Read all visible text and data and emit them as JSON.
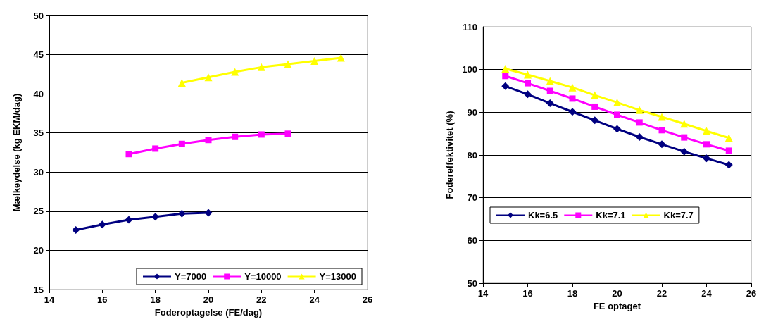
{
  "chart_data": [
    {
      "type": "line",
      "xlabel": "Foderoptagelse (FE/dag)",
      "ylabel": "Mælkeydelse (kg EKM/dag)",
      "xlim": [
        14,
        26
      ],
      "xticks": [
        14,
        16,
        18,
        20,
        22,
        24,
        26
      ],
      "ylim": [
        15,
        50
      ],
      "yticks": [
        15,
        20,
        25,
        30,
        35,
        40,
        45,
        50
      ],
      "grid": "y",
      "legend": "bottom right",
      "series": [
        {
          "name": "Y=7000",
          "color": "#000080",
          "marker": "diamond",
          "x": [
            15,
            16,
            17,
            18,
            19,
            20
          ],
          "values": [
            22.6,
            23.3,
            23.9,
            24.3,
            24.7,
            24.8
          ]
        },
        {
          "name": "Y=10000",
          "color": "#ff00ff",
          "marker": "square",
          "x": [
            17,
            18,
            19,
            20,
            21,
            22,
            23
          ],
          "values": [
            32.3,
            33.0,
            33.6,
            34.1,
            34.5,
            34.8,
            34.9
          ]
        },
        {
          "name": "Y=13000",
          "color": "#ffff00",
          "marker": "triangle",
          "x": [
            19,
            20,
            21,
            22,
            23,
            24,
            25
          ],
          "values": [
            41.4,
            42.1,
            42.8,
            43.4,
            43.8,
            44.2,
            44.6
          ]
        }
      ]
    },
    {
      "type": "line",
      "xlabel": "FE optaget",
      "ylabel": "Fodereffektivitet (%)",
      "xlim": [
        14,
        26
      ],
      "xticks": [
        14,
        16,
        18,
        20,
        22,
        24,
        26
      ],
      "ylim": [
        50,
        110
      ],
      "yticks": [
        50,
        60,
        70,
        80,
        90,
        100,
        110
      ],
      "grid": "y",
      "legend": "bottom left",
      "series": [
        {
          "name": "Kk=6.5",
          "color": "#000080",
          "marker": "diamond",
          "x": [
            15,
            16,
            17,
            18,
            19,
            20,
            21,
            22,
            23,
            24,
            25
          ],
          "values": [
            96.1,
            94.2,
            92.1,
            90.1,
            88.1,
            86.1,
            84.2,
            82.5,
            80.8,
            79.2,
            77.7
          ]
        },
        {
          "name": "Kk=7.1",
          "color": "#ff00ff",
          "marker": "square",
          "x": [
            15,
            16,
            17,
            18,
            19,
            20,
            21,
            22,
            23,
            24,
            25
          ],
          "values": [
            98.5,
            96.8,
            95.0,
            93.2,
            91.3,
            89.4,
            87.6,
            85.8,
            84.1,
            82.5,
            81.0
          ]
        },
        {
          "name": "Kk=7.7",
          "color": "#ffff00",
          "marker": "triangle",
          "x": [
            15,
            16,
            17,
            18,
            19,
            20,
            21,
            22,
            23,
            24,
            25
          ],
          "values": [
            100.2,
            98.8,
            97.3,
            95.8,
            94.0,
            92.3,
            90.5,
            88.9,
            87.3,
            85.6,
            84.0
          ]
        }
      ]
    }
  ]
}
